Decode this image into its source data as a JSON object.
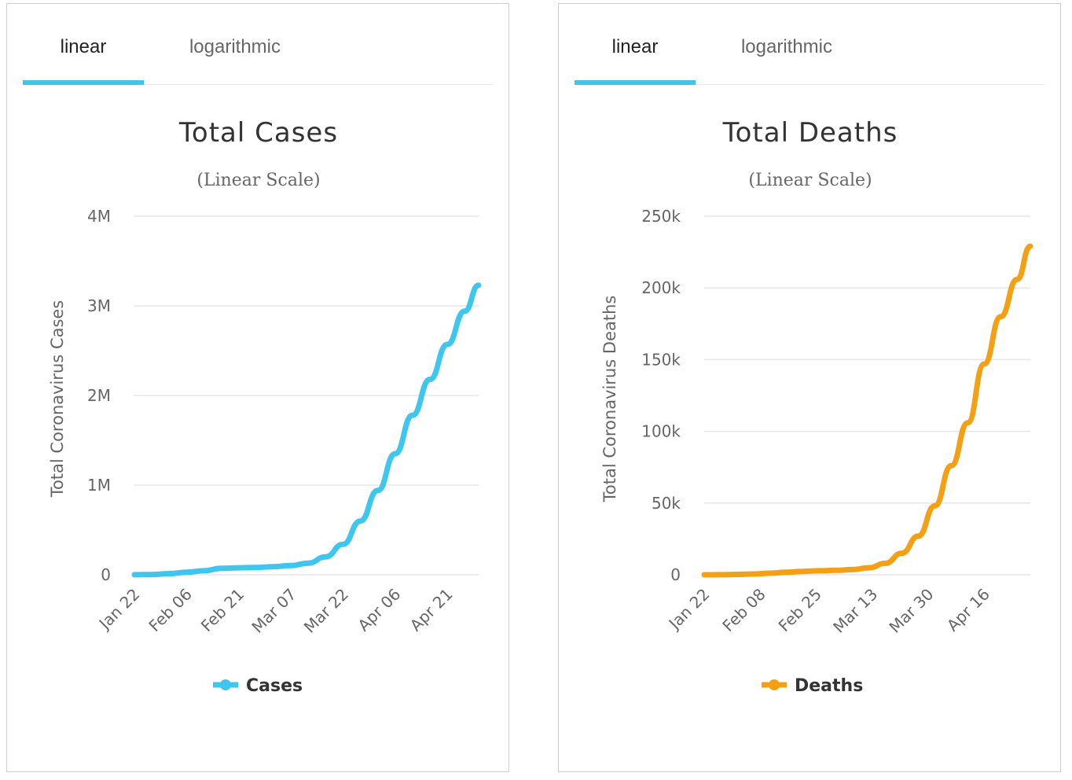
{
  "charts": [
    {
      "tabs": [
        {
          "label": "linear",
          "active": true
        },
        {
          "label": "logarithmic",
          "active": false
        }
      ],
      "color": "#3ec6ee"
    },
    {
      "tabs": [
        {
          "label": "linear",
          "active": true
        },
        {
          "label": "logarithmic",
          "active": false
        }
      ],
      "color": "#f4a014"
    }
  ],
  "chart_data": [
    {
      "type": "line",
      "title": "Total Cases",
      "subtitle": "(Linear Scale)",
      "ylabel": "Total Coronavirus Cases",
      "xlabel": "",
      "ylim": [
        0,
        4000000
      ],
      "y_ticks": [
        0,
        1000000,
        2000000,
        3000000,
        4000000
      ],
      "y_tick_labels": [
        "0",
        "1M",
        "2M",
        "3M",
        "4M"
      ],
      "x_tick_labels": [
        "Jan 22",
        "Feb 06",
        "Feb 21",
        "Mar 07",
        "Mar 22",
        "Apr 06",
        "Apr 21"
      ],
      "x_range": [
        "Jan 22",
        "Apr 30"
      ],
      "grid": true,
      "legend": "bottom-center",
      "color": "#3ec6ee",
      "series": [
        {
          "name": "Cases",
          "x": [
            "Jan 22",
            "Jan 27",
            "Feb 01",
            "Feb 06",
            "Feb 11",
            "Feb 16",
            "Feb 21",
            "Feb 26",
            "Mar 02",
            "Mar 07",
            "Mar 12",
            "Mar 17",
            "Mar 22",
            "Mar 27",
            "Apr 01",
            "Apr 06",
            "Apr 11",
            "Apr 16",
            "Apr 21",
            "Apr 26",
            "Apr 30"
          ],
          "values": [
            600,
            3000,
            12000,
            28000,
            45000,
            72000,
            78000,
            82000,
            90000,
            103000,
            130000,
            200000,
            340000,
            600000,
            940000,
            1350000,
            1780000,
            2180000,
            2570000,
            2940000,
            3230000
          ]
        }
      ]
    },
    {
      "type": "line",
      "title": "Total Deaths",
      "subtitle": "(Linear Scale)",
      "ylabel": "Total Coronavirus Deaths",
      "xlabel": "",
      "ylim": [
        0,
        250000
      ],
      "y_ticks": [
        0,
        50000,
        100000,
        150000,
        200000,
        250000
      ],
      "y_tick_labels": [
        "0",
        "50k",
        "100k",
        "150k",
        "200k",
        "250k"
      ],
      "x_tick_labels": [
        "Jan 22",
        "Feb 08",
        "Feb 25",
        "Mar 13",
        "Mar 30",
        "Apr 16"
      ],
      "x_range": [
        "Jan 22",
        "Apr 30"
      ],
      "grid": true,
      "legend": "bottom-center",
      "color": "#f4a014",
      "series": [
        {
          "name": "Deaths",
          "x": [
            "Jan 22",
            "Jan 27",
            "Feb 01",
            "Feb 06",
            "Feb 11",
            "Feb 16",
            "Feb 21",
            "Feb 26",
            "Mar 02",
            "Mar 07",
            "Mar 12",
            "Mar 17",
            "Mar 22",
            "Mar 27",
            "Apr 01",
            "Apr 06",
            "Apr 11",
            "Apr 16",
            "Apr 21",
            "Apr 26",
            "Apr 30"
          ],
          "values": [
            17,
            80,
            260,
            560,
            1100,
            1770,
            2350,
            2800,
            3100,
            3600,
            4900,
            8000,
            15000,
            27000,
            48000,
            76000,
            106000,
            147000,
            180000,
            206000,
            229000
          ]
        }
      ]
    }
  ]
}
